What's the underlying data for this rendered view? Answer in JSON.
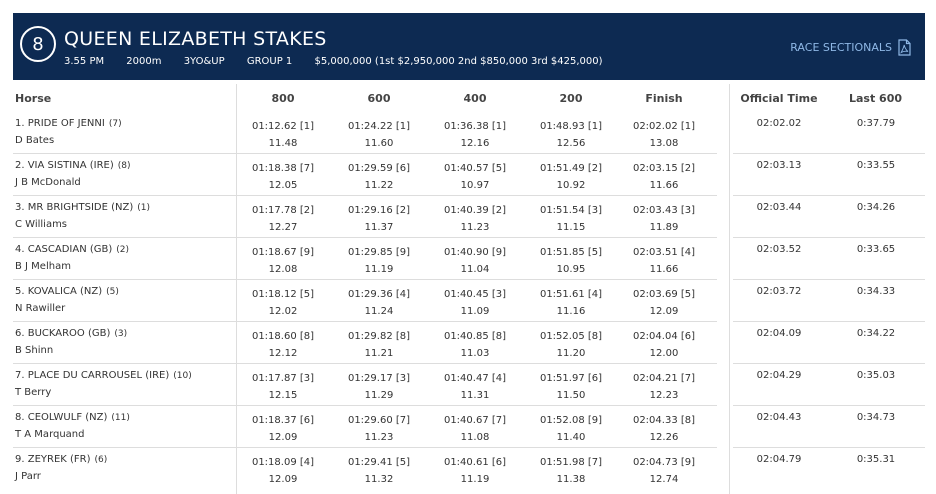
{
  "race": {
    "number": "8",
    "title": "QUEEN ELIZABETH STAKES",
    "time": "3.55 PM",
    "distance": "2000m",
    "age": "3YO&UP",
    "group": "GROUP 1",
    "prize": "$5,000,000 (1st $2,950,000 2nd $850,000 3rd $425,000)",
    "sectionals_label": "RACE SECTIONALS",
    "sectionals_icon": "pdf-icon"
  },
  "columns": {
    "horse": "Horse",
    "c800": "800",
    "c600": "600",
    "c400": "400",
    "c200": "200",
    "finish": "Finish",
    "official": "Official Time",
    "last600": "Last 600"
  },
  "rows": [
    {
      "horse": "1. PRIDE OF JENNI",
      "barrier": "(7)",
      "jockey": "D Bates",
      "s800": "01:12.62 [1]",
      "s800b": "11.48",
      "s600": "01:24.22 [1]",
      "s600b": "11.60",
      "s400": "01:36.38 [1]",
      "s400b": "12.16",
      "s200": "01:48.93 [1]",
      "s200b": "12.56",
      "finish": "02:02.02 [1]",
      "finishb": "13.08",
      "official": "02:02.02",
      "last600": "0:37.79"
    },
    {
      "horse": "2. VIA SISTINA (IRE)",
      "barrier": "(8)",
      "jockey": "J B McDonald",
      "s800": "01:18.38 [7]",
      "s800b": "12.05",
      "s600": "01:29.59 [6]",
      "s600b": "11.22",
      "s400": "01:40.57 [5]",
      "s400b": "10.97",
      "s200": "01:51.49 [2]",
      "s200b": "10.92",
      "finish": "02:03.15 [2]",
      "finishb": "11.66",
      "official": "02:03.13",
      "last600": "0:33.55"
    },
    {
      "horse": "3. MR BRIGHTSIDE (NZ)",
      "barrier": "(1)",
      "jockey": "C Williams",
      "s800": "01:17.78 [2]",
      "s800b": "12.27",
      "s600": "01:29.16 [2]",
      "s600b": "11.37",
      "s400": "01:40.39 [2]",
      "s400b": "11.23",
      "s200": "01:51.54 [3]",
      "s200b": "11.15",
      "finish": "02:03.43 [3]",
      "finishb": "11.89",
      "official": "02:03.44",
      "last600": "0:34.26"
    },
    {
      "horse": "4. CASCADIAN (GB)",
      "barrier": "(2)",
      "jockey": "B J Melham",
      "s800": "01:18.67 [9]",
      "s800b": "12.08",
      "s600": "01:29.85 [9]",
      "s600b": "11.19",
      "s400": "01:40.90 [9]",
      "s400b": "11.04",
      "s200": "01:51.85 [5]",
      "s200b": "10.95",
      "finish": "02:03.51 [4]",
      "finishb": "11.66",
      "official": "02:03.52",
      "last600": "0:33.65"
    },
    {
      "horse": "5. KOVALICA (NZ)",
      "barrier": "(5)",
      "jockey": "N Rawiller",
      "s800": "01:18.12 [5]",
      "s800b": "12.02",
      "s600": "01:29.36 [4]",
      "s600b": "11.24",
      "s400": "01:40.45 [3]",
      "s400b": "11.09",
      "s200": "01:51.61 [4]",
      "s200b": "11.16",
      "finish": "02:03.69 [5]",
      "finishb": "12.09",
      "official": "02:03.72",
      "last600": "0:34.33"
    },
    {
      "horse": "6. BUCKAROO (GB)",
      "barrier": "(3)",
      "jockey": "B Shinn",
      "s800": "01:18.60 [8]",
      "s800b": "12.12",
      "s600": "01:29.82 [8]",
      "s600b": "11.21",
      "s400": "01:40.85 [8]",
      "s400b": "11.03",
      "s200": "01:52.05 [8]",
      "s200b": "11.20",
      "finish": "02:04.04 [6]",
      "finishb": "12.00",
      "official": "02:04.09",
      "last600": "0:34.22"
    },
    {
      "horse": "7. PLACE DU CARROUSEL (IRE)",
      "barrier": "(10)",
      "jockey": "T Berry",
      "s800": "01:17.87 [3]",
      "s800b": "12.15",
      "s600": "01:29.17 [3]",
      "s600b": "11.29",
      "s400": "01:40.47 [4]",
      "s400b": "11.31",
      "s200": "01:51.97 [6]",
      "s200b": "11.50",
      "finish": "02:04.21 [7]",
      "finishb": "12.23",
      "official": "02:04.29",
      "last600": "0:35.03"
    },
    {
      "horse": "8. CEOLWULF (NZ)",
      "barrier": "(11)",
      "jockey": "T A Marquand",
      "s800": "01:18.37 [6]",
      "s800b": "12.09",
      "s600": "01:29.60 [7]",
      "s600b": "11.23",
      "s400": "01:40.67 [7]",
      "s400b": "11.08",
      "s200": "01:52.08 [9]",
      "s200b": "11.40",
      "finish": "02:04.33 [8]",
      "finishb": "12.26",
      "official": "02:04.43",
      "last600": "0:34.73"
    },
    {
      "horse": "9. ZEYREK (FR)",
      "barrier": "(6)",
      "jockey": "J Parr",
      "s800": "01:18.09 [4]",
      "s800b": "12.09",
      "s600": "01:29.41 [5]",
      "s600b": "11.32",
      "s400": "01:40.61 [6]",
      "s400b": "11.19",
      "s200": "01:51.98 [7]",
      "s200b": "11.38",
      "finish": "02:04.73 [9]",
      "finishb": "12.74",
      "official": "02:04.79",
      "last600": "0:35.31"
    }
  ]
}
